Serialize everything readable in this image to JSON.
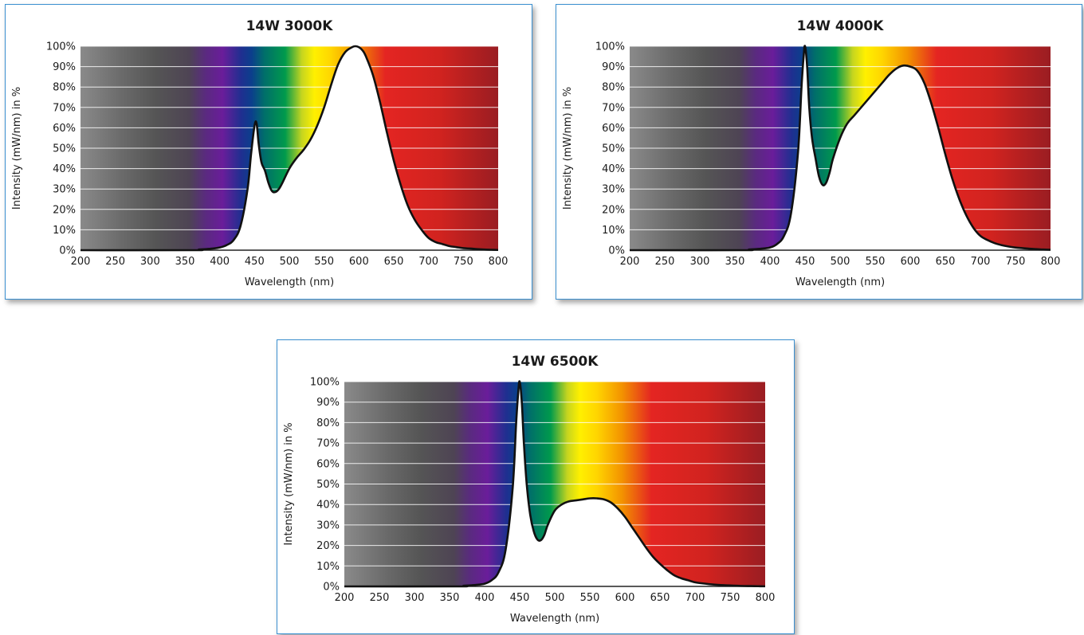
{
  "colors": {
    "border": "#3a8fd0",
    "curve": "#111111",
    "gridline": "#ffffff",
    "fill_under_curve": "#ffffff"
  },
  "chart_data": [
    {
      "type": "area",
      "title": "14W 3000K",
      "xlabel": "Wavelength (nm)",
      "ylabel": "Intensity (mW/nm) in %",
      "xlim": [
        200,
        800
      ],
      "ylim": [
        0,
        100
      ],
      "xticks": [
        "200",
        "250",
        "300",
        "350",
        "400",
        "450",
        "500",
        "550",
        "600",
        "650",
        "700",
        "750",
        "800"
      ],
      "yticks": [
        "0%",
        "10%",
        "20%",
        "30%",
        "40%",
        "50%",
        "60%",
        "70%",
        "80%",
        "90%",
        "100%"
      ],
      "grid": true,
      "background": "visible spectrum gradient",
      "x": [
        200,
        360,
        370,
        380,
        390,
        400,
        410,
        420,
        430,
        440,
        445,
        450,
        453,
        456,
        460,
        465,
        470,
        475,
        480,
        485,
        490,
        500,
        510,
        520,
        530,
        540,
        550,
        560,
        570,
        580,
        590,
        595,
        600,
        605,
        610,
        620,
        630,
        640,
        650,
        660,
        670,
        680,
        690,
        700,
        710,
        720,
        730,
        740,
        750,
        760,
        770,
        780,
        790,
        800
      ],
      "values": [
        0,
        0,
        0.3,
        0.5,
        0.8,
        1.3,
        2.5,
        5,
        12,
        30,
        47,
        61,
        62,
        52,
        43,
        39,
        33,
        29,
        28.5,
        30,
        33,
        40,
        45,
        49,
        54,
        61,
        70,
        81,
        91,
        97,
        99.5,
        100,
        99.5,
        98,
        95,
        86,
        73,
        58,
        44,
        32,
        22,
        15,
        10,
        6,
        4,
        3,
        2,
        1.5,
        1,
        0.8,
        0.5,
        0.3,
        0.2,
        0.1
      ]
    },
    {
      "type": "area",
      "title": "14W 4000K",
      "xlabel": "Wavelength (nm)",
      "ylabel": "Intensity (mW/nm) in %",
      "xlim": [
        200,
        800
      ],
      "ylim": [
        0,
        100
      ],
      "xticks": [
        "200",
        "250",
        "300",
        "350",
        "400",
        "450",
        "500",
        "550",
        "600",
        "650",
        "700",
        "750",
        "800"
      ],
      "yticks": [
        "0%",
        "10%",
        "20%",
        "30%",
        "40%",
        "50%",
        "60%",
        "70%",
        "80%",
        "90%",
        "100%"
      ],
      "grid": true,
      "background": "visible spectrum gradient",
      "x": [
        200,
        360,
        370,
        380,
        390,
        400,
        410,
        420,
        430,
        440,
        445,
        448,
        450,
        453,
        456,
        460,
        465,
        470,
        475,
        480,
        485,
        490,
        500,
        510,
        520,
        530,
        540,
        550,
        560,
        570,
        580,
        590,
        600,
        610,
        620,
        630,
        640,
        650,
        660,
        670,
        680,
        690,
        700,
        710,
        720,
        730,
        740,
        750,
        760,
        770,
        780,
        790,
        800
      ],
      "values": [
        0,
        0,
        0.3,
        0.5,
        0.8,
        1.3,
        3,
        7,
        18,
        48,
        80,
        95,
        100,
        90,
        70,
        55,
        45,
        36,
        32,
        33,
        38,
        45,
        55,
        62,
        66,
        70,
        74,
        78,
        82,
        86,
        89,
        90.5,
        90,
        88,
        82,
        72,
        60,
        47,
        35,
        25,
        17,
        11,
        7,
        5,
        3.5,
        2.5,
        1.8,
        1.3,
        1,
        0.7,
        0.5,
        0.3,
        0.2
      ]
    },
    {
      "type": "area",
      "title": "14W 6500K",
      "xlabel": "Wavelength (nm)",
      "ylabel": "Intensity (mW/nm) in %",
      "xlim": [
        200,
        800
      ],
      "ylim": [
        0,
        100
      ],
      "xticks": [
        "200",
        "250",
        "300",
        "350",
        "400",
        "450",
        "500",
        "550",
        "600",
        "650",
        "700",
        "750",
        "800"
      ],
      "yticks": [
        "0%",
        "10%",
        "20%",
        "30%",
        "40%",
        "50%",
        "60%",
        "70%",
        "80%",
        "90%",
        "100%"
      ],
      "grid": true,
      "background": "visible spectrum gradient",
      "x": [
        200,
        360,
        370,
        380,
        390,
        400,
        410,
        420,
        430,
        440,
        445,
        448,
        450,
        453,
        456,
        460,
        465,
        470,
        475,
        480,
        485,
        490,
        500,
        510,
        520,
        530,
        540,
        550,
        560,
        570,
        580,
        590,
        600,
        610,
        620,
        630,
        640,
        650,
        660,
        670,
        680,
        690,
        700,
        710,
        720,
        730,
        740,
        750,
        760,
        770,
        780,
        790,
        800
      ],
      "values": [
        0,
        0,
        0.3,
        0.5,
        0.8,
        1.3,
        3,
        7,
        18,
        48,
        80,
        95,
        100,
        90,
        70,
        50,
        35,
        27,
        23,
        22.5,
        25,
        30,
        37,
        40,
        41.5,
        42,
        42.5,
        43,
        43,
        42.5,
        41,
        38,
        34,
        29,
        24,
        19,
        14.5,
        11,
        8,
        5.5,
        4,
        3,
        2,
        1.5,
        1.1,
        0.8,
        0.6,
        0.45,
        0.3,
        0.2,
        0.15,
        0.1,
        0.05
      ]
    }
  ]
}
